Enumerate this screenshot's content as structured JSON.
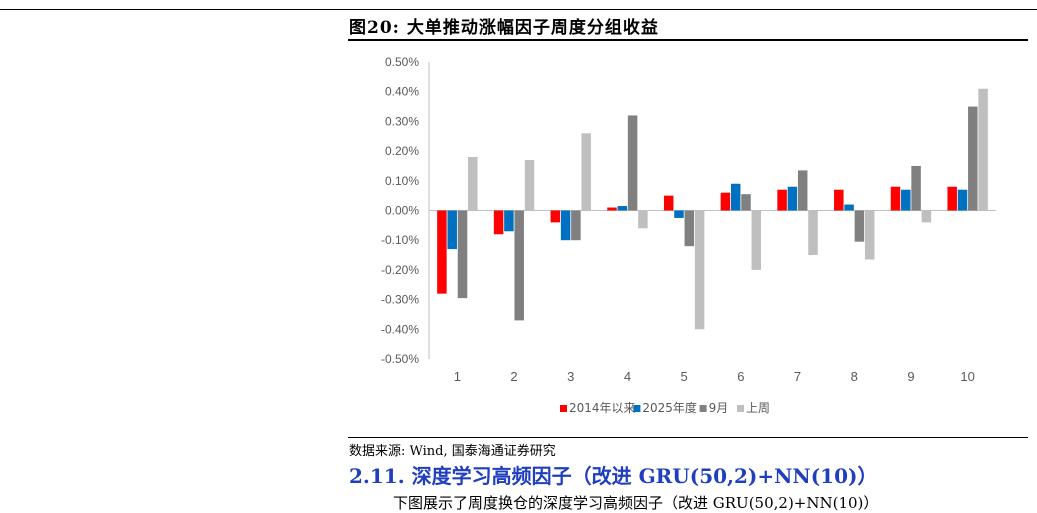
{
  "figure": {
    "title": "图20: 大单推动涨幅因子周度分组收益",
    "source": "数据来源: Wind, 国泰海通证券研究"
  },
  "section": {
    "heading": "2.11. 深度学习高频因子（改进 GRU(50,2)+NN(10)）",
    "partial_line": "下图展示了周度换仓的深度学习高频因子（改进 GRU(50,2)+NN(10)）"
  },
  "chart_data": {
    "type": "bar",
    "categories": [
      "1",
      "2",
      "3",
      "4",
      "5",
      "6",
      "7",
      "8",
      "9",
      "10"
    ],
    "series": [
      {
        "name": "2014年以来",
        "color": "#ff0000",
        "values": [
          -0.28,
          -0.08,
          -0.04,
          0.01,
          0.05,
          0.06,
          0.07,
          0.07,
          0.08,
          0.08
        ]
      },
      {
        "name": "2025年度",
        "color": "#0070c0",
        "values": [
          -0.13,
          -0.07,
          -0.1,
          0.015,
          -0.025,
          0.09,
          0.08,
          0.02,
          0.07,
          0.07
        ]
      },
      {
        "name": "9月",
        "color": "#808080",
        "values": [
          -0.295,
          -0.37,
          -0.1,
          0.32,
          -0.12,
          0.055,
          0.135,
          -0.105,
          0.15,
          0.35
        ]
      },
      {
        "name": "上周",
        "color": "#bfbfbf",
        "values": [
          0.18,
          0.17,
          0.26,
          -0.06,
          -0.4,
          -0.2,
          -0.15,
          -0.165,
          -0.04,
          0.41
        ]
      }
    ],
    "y_ticks": [
      "0.50%",
      "0.40%",
      "0.30%",
      "0.20%",
      "0.10%",
      "0.00%",
      "-0.10%",
      "-0.20%",
      "-0.30%",
      "-0.40%",
      "-0.50%"
    ],
    "ylim": [
      -0.5,
      0.5
    ],
    "grid": false,
    "legend_position": "bottom"
  }
}
